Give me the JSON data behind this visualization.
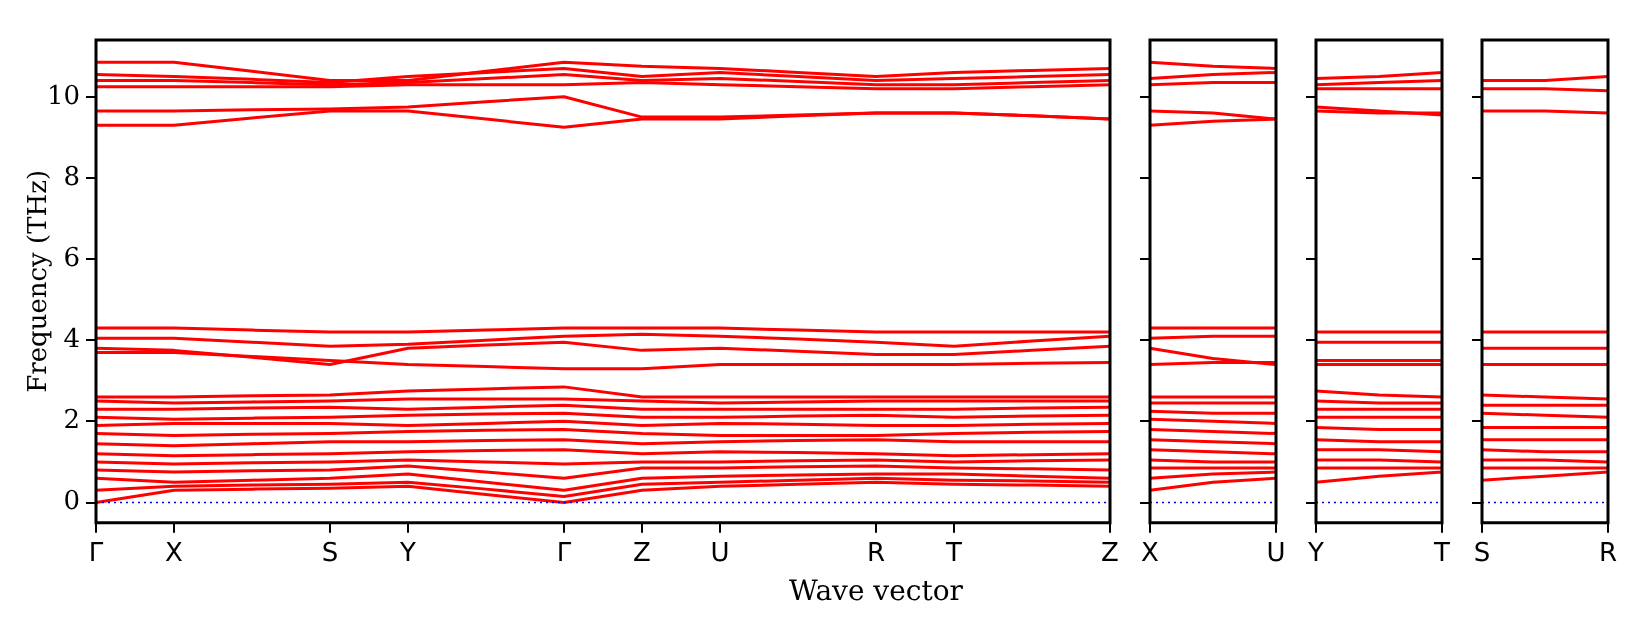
{
  "chart_data": [
    {
      "type": "line",
      "ylabel": "Frequency (THz)",
      "xlabel": "Wave vector",
      "categories": [
        "Γ",
        "X",
        null,
        "S",
        "Y",
        null,
        "Γ",
        "Z",
        "U",
        null,
        "R",
        "T",
        null,
        "Z"
      ],
      "ylim": [
        -0.5,
        11.4
      ],
      "yticks": [
        0,
        2,
        4,
        6,
        8,
        10
      ],
      "ref_lines": [
        {
          "axis": "y",
          "value": 0,
          "color": "#0000ff",
          "line_style": "dotted"
        }
      ],
      "series": [
        {
          "color": "#ff0000",
          "values": [
            10.85,
            10.85,
            10.63,
            10.4,
            10.4,
            10.63,
            10.85,
            10.75,
            10.7,
            10.6,
            10.5,
            10.6,
            10.65,
            10.7
          ]
        },
        {
          "color": "#ff0000",
          "values": [
            10.55,
            10.5,
            10.43,
            10.35,
            10.5,
            10.6,
            10.7,
            10.5,
            10.6,
            10.5,
            10.4,
            10.45,
            10.5,
            10.55
          ]
        },
        {
          "color": "#ff0000",
          "values": [
            10.4,
            10.4,
            10.35,
            10.3,
            10.35,
            10.45,
            10.55,
            10.4,
            10.45,
            10.38,
            10.3,
            10.3,
            10.35,
            10.4
          ]
        },
        {
          "color": "#ff0000",
          "values": [
            10.25,
            10.25,
            10.25,
            10.25,
            10.3,
            10.3,
            10.3,
            10.35,
            10.3,
            10.25,
            10.2,
            10.2,
            10.25,
            10.3
          ]
        },
        {
          "color": "#ff0000",
          "values": [
            9.65,
            9.65,
            9.68,
            9.7,
            9.75,
            9.88,
            10.0,
            9.5,
            9.5,
            9.55,
            9.6,
            9.6,
            9.53,
            9.45
          ]
        },
        {
          "color": "#ff0000",
          "values": [
            9.3,
            9.3,
            9.48,
            9.65,
            9.65,
            9.45,
            9.25,
            9.45,
            9.45,
            9.53,
            9.6,
            9.6,
            9.53,
            9.45
          ]
        },
        {
          "color": "#ff0000",
          "values": [
            4.3,
            4.3,
            4.25,
            4.2,
            4.2,
            4.25,
            4.3,
            4.3,
            4.3,
            4.25,
            4.2,
            4.2,
            4.2,
            4.2
          ]
        },
        {
          "color": "#ff0000",
          "values": [
            4.05,
            4.05,
            3.95,
            3.85,
            3.9,
            4.0,
            4.1,
            4.15,
            4.1,
            4.03,
            3.95,
            3.85,
            3.98,
            4.1
          ]
        },
        {
          "color": "#ff0000",
          "values": [
            3.8,
            3.75,
            3.58,
            3.4,
            3.8,
            3.88,
            3.95,
            3.75,
            3.8,
            3.73,
            3.65,
            3.65,
            3.75,
            3.85
          ]
        },
        {
          "color": "#ff0000",
          "values": [
            3.7,
            3.7,
            3.6,
            3.5,
            3.4,
            3.35,
            3.3,
            3.3,
            3.4,
            3.4,
            3.4,
            3.4,
            3.43,
            3.45
          ]
        },
        {
          "color": "#ff0000",
          "values": [
            2.6,
            2.6,
            2.63,
            2.65,
            2.75,
            2.8,
            2.85,
            2.6,
            2.6,
            2.6,
            2.6,
            2.6,
            2.6,
            2.6
          ]
        },
        {
          "color": "#ff0000",
          "values": [
            2.5,
            2.45,
            2.48,
            2.5,
            2.55,
            2.55,
            2.55,
            2.5,
            2.45,
            2.48,
            2.5,
            2.5,
            2.5,
            2.5
          ]
        },
        {
          "color": "#ff0000",
          "values": [
            2.3,
            2.3,
            2.33,
            2.35,
            2.3,
            2.35,
            2.4,
            2.3,
            2.3,
            2.3,
            2.3,
            2.3,
            2.33,
            2.35
          ]
        },
        {
          "color": "#ff0000",
          "values": [
            2.1,
            2.05,
            2.08,
            2.1,
            2.15,
            2.18,
            2.2,
            2.1,
            2.1,
            2.13,
            2.15,
            2.1,
            2.13,
            2.15
          ]
        },
        {
          "color": "#ff0000",
          "values": [
            1.9,
            1.95,
            1.95,
            1.95,
            1.9,
            1.95,
            2.0,
            1.9,
            1.95,
            1.93,
            1.9,
            1.9,
            1.93,
            1.95
          ]
        },
        {
          "color": "#ff0000",
          "values": [
            1.7,
            1.65,
            1.68,
            1.7,
            1.75,
            1.78,
            1.8,
            1.7,
            1.65,
            1.65,
            1.65,
            1.7,
            1.73,
            1.75
          ]
        },
        {
          "color": "#ff0000",
          "values": [
            1.45,
            1.4,
            1.45,
            1.5,
            1.5,
            1.53,
            1.55,
            1.45,
            1.5,
            1.53,
            1.55,
            1.5,
            1.5,
            1.5
          ]
        },
        {
          "color": "#ff0000",
          "values": [
            1.2,
            1.15,
            1.18,
            1.2,
            1.25,
            1.28,
            1.3,
            1.2,
            1.25,
            1.23,
            1.2,
            1.15,
            1.18,
            1.2
          ]
        },
        {
          "color": "#ff0000",
          "values": [
            1.0,
            0.95,
            0.98,
            1.0,
            1.05,
            1.0,
            0.95,
            1.0,
            1.0,
            1.03,
            1.05,
            1.0,
            1.03,
            1.05
          ]
        },
        {
          "color": "#ff0000",
          "values": [
            0.8,
            0.75,
            0.78,
            0.8,
            0.9,
            0.75,
            0.6,
            0.85,
            0.85,
            0.88,
            0.9,
            0.85,
            0.83,
            0.8
          ]
        },
        {
          "color": "#ff0000",
          "values": [
            0.6,
            0.5,
            0.55,
            0.6,
            0.7,
            0.5,
            0.3,
            0.6,
            0.65,
            0.68,
            0.7,
            0.7,
            0.65,
            0.6
          ]
        },
        {
          "color": "#ff0000",
          "values": [
            0.3,
            0.4,
            0.43,
            0.45,
            0.5,
            0.33,
            0.15,
            0.45,
            0.5,
            0.55,
            0.6,
            0.55,
            0.53,
            0.5
          ]
        },
        {
          "color": "#ff0000",
          "values": [
            0,
            0.3,
            0.33,
            0.35,
            0.4,
            0.2,
            0,
            0.3,
            0.4,
            0.45,
            0.5,
            0.45,
            0.43,
            0.4
          ]
        }
      ]
    },
    {
      "type": "line",
      "categories": [
        "X",
        null,
        "U"
      ],
      "ylim": [
        -0.5,
        11.4
      ],
      "yticks": [
        0,
        2,
        4,
        6,
        8,
        10
      ],
      "tick_labels": "x",
      "ref_lines": [
        {
          "axis": "y",
          "value": 0,
          "color": "#0000ff",
          "line_style": "dotted"
        }
      ],
      "series": [
        {
          "color": "#ff0000",
          "values": [
            10.85,
            10.75,
            10.7
          ]
        },
        {
          "color": "#ff0000",
          "values": [
            10.45,
            10.55,
            10.6
          ]
        },
        {
          "color": "#ff0000",
          "values": [
            10.3,
            10.35,
            10.35
          ]
        },
        {
          "color": "#ff0000",
          "values": [
            9.65,
            9.6,
            9.45
          ]
        },
        {
          "color": "#ff0000",
          "values": [
            9.3,
            9.4,
            9.45
          ]
        },
        {
          "color": "#ff0000",
          "values": [
            4.3,
            4.3,
            4.3
          ]
        },
        {
          "color": "#ff0000",
          "values": [
            4.05,
            4.1,
            4.1
          ]
        },
        {
          "color": "#ff0000",
          "values": [
            3.8,
            3.55,
            3.4
          ]
        },
        {
          "color": "#ff0000",
          "values": [
            3.4,
            3.45,
            3.45
          ]
        },
        {
          "color": "#ff0000",
          "values": [
            2.6,
            2.6,
            2.6
          ]
        },
        {
          "color": "#ff0000",
          "values": [
            2.45,
            2.45,
            2.45
          ]
        },
        {
          "color": "#ff0000",
          "values": [
            2.25,
            2.2,
            2.2
          ]
        },
        {
          "color": "#ff0000",
          "values": [
            2.05,
            2.0,
            1.95
          ]
        },
        {
          "color": "#ff0000",
          "values": [
            1.8,
            1.75,
            1.7
          ]
        },
        {
          "color": "#ff0000",
          "values": [
            1.55,
            1.5,
            1.45
          ]
        },
        {
          "color": "#ff0000",
          "values": [
            1.3,
            1.25,
            1.2
          ]
        },
        {
          "color": "#ff0000",
          "values": [
            1.05,
            1.0,
            1.0
          ]
        },
        {
          "color": "#ff0000",
          "values": [
            0.85,
            0.85,
            0.85
          ]
        },
        {
          "color": "#ff0000",
          "values": [
            0.6,
            0.7,
            0.75
          ]
        },
        {
          "color": "#ff0000",
          "values": [
            0.3,
            0.5,
            0.6
          ]
        }
      ]
    },
    {
      "type": "line",
      "categories": [
        "Y",
        null,
        "T"
      ],
      "ylim": [
        -0.5,
        11.4
      ],
      "yticks": [
        0,
        2,
        4,
        6,
        8,
        10
      ],
      "tick_labels": "x",
      "ref_lines": [
        {
          "axis": "y",
          "value": 0,
          "color": "#0000ff",
          "line_style": "dotted"
        }
      ],
      "series": [
        {
          "color": "#ff0000",
          "values": [
            10.45,
            10.5,
            10.6
          ]
        },
        {
          "color": "#ff0000",
          "values": [
            10.3,
            10.35,
            10.4
          ]
        },
        {
          "color": "#ff0000",
          "values": [
            10.2,
            10.2,
            10.2
          ]
        },
        {
          "color": "#ff0000",
          "values": [
            9.75,
            9.65,
            9.55
          ]
        },
        {
          "color": "#ff0000",
          "values": [
            9.65,
            9.6,
            9.6
          ]
        },
        {
          "color": "#ff0000",
          "values": [
            4.2,
            4.2,
            4.2
          ]
        },
        {
          "color": "#ff0000",
          "values": [
            3.95,
            3.95,
            3.95
          ]
        },
        {
          "color": "#ff0000",
          "values": [
            3.5,
            3.5,
            3.5
          ]
        },
        {
          "color": "#ff0000",
          "values": [
            3.4,
            3.4,
            3.4
          ]
        },
        {
          "color": "#ff0000",
          "values": [
            2.75,
            2.65,
            2.6
          ]
        },
        {
          "color": "#ff0000",
          "values": [
            2.5,
            2.45,
            2.45
          ]
        },
        {
          "color": "#ff0000",
          "values": [
            2.3,
            2.3,
            2.3
          ]
        },
        {
          "color": "#ff0000",
          "values": [
            2.1,
            2.1,
            2.1
          ]
        },
        {
          "color": "#ff0000",
          "values": [
            1.85,
            1.8,
            1.8
          ]
        },
        {
          "color": "#ff0000",
          "values": [
            1.55,
            1.5,
            1.5
          ]
        },
        {
          "color": "#ff0000",
          "values": [
            1.3,
            1.3,
            1.25
          ]
        },
        {
          "color": "#ff0000",
          "values": [
            1.05,
            1.05,
            1.0
          ]
        },
        {
          "color": "#ff0000",
          "values": [
            0.85,
            0.85,
            0.85
          ]
        },
        {
          "color": "#ff0000",
          "values": [
            0.5,
            0.65,
            0.75
          ]
        }
      ]
    },
    {
      "type": "line",
      "categories": [
        "S",
        null,
        "R"
      ],
      "ylim": [
        -0.5,
        11.4
      ],
      "yticks": [
        0,
        2,
        4,
        6,
        8,
        10
      ],
      "tick_labels": "x",
      "ref_lines": [
        {
          "axis": "y",
          "value": 0,
          "color": "#0000ff",
          "line_style": "dotted"
        }
      ],
      "series": [
        {
          "color": "#ff0000",
          "values": [
            10.4,
            10.4,
            10.5
          ]
        },
        {
          "color": "#ff0000",
          "values": [
            10.2,
            10.2,
            10.15
          ]
        },
        {
          "color": "#ff0000",
          "values": [
            9.65,
            9.65,
            9.6
          ]
        },
        {
          "color": "#ff0000",
          "values": [
            4.2,
            4.2,
            4.2
          ]
        },
        {
          "color": "#ff0000",
          "values": [
            3.8,
            3.8,
            3.8
          ]
        },
        {
          "color": "#ff0000",
          "values": [
            3.4,
            3.4,
            3.4
          ]
        },
        {
          "color": "#ff0000",
          "values": [
            2.65,
            2.6,
            2.55
          ]
        },
        {
          "color": "#ff0000",
          "values": [
            2.4,
            2.4,
            2.4
          ]
        },
        {
          "color": "#ff0000",
          "values": [
            2.2,
            2.15,
            2.1
          ]
        },
        {
          "color": "#ff0000",
          "values": [
            1.85,
            1.85,
            1.85
          ]
        },
        {
          "color": "#ff0000",
          "values": [
            1.55,
            1.55,
            1.55
          ]
        },
        {
          "color": "#ff0000",
          "values": [
            1.3,
            1.25,
            1.25
          ]
        },
        {
          "color": "#ff0000",
          "values": [
            1.05,
            1.05,
            1.0
          ]
        },
        {
          "color": "#ff0000",
          "values": [
            0.85,
            0.85,
            0.85
          ]
        },
        {
          "color": "#ff0000",
          "values": [
            0.55,
            0.65,
            0.75
          ]
        }
      ]
    }
  ]
}
